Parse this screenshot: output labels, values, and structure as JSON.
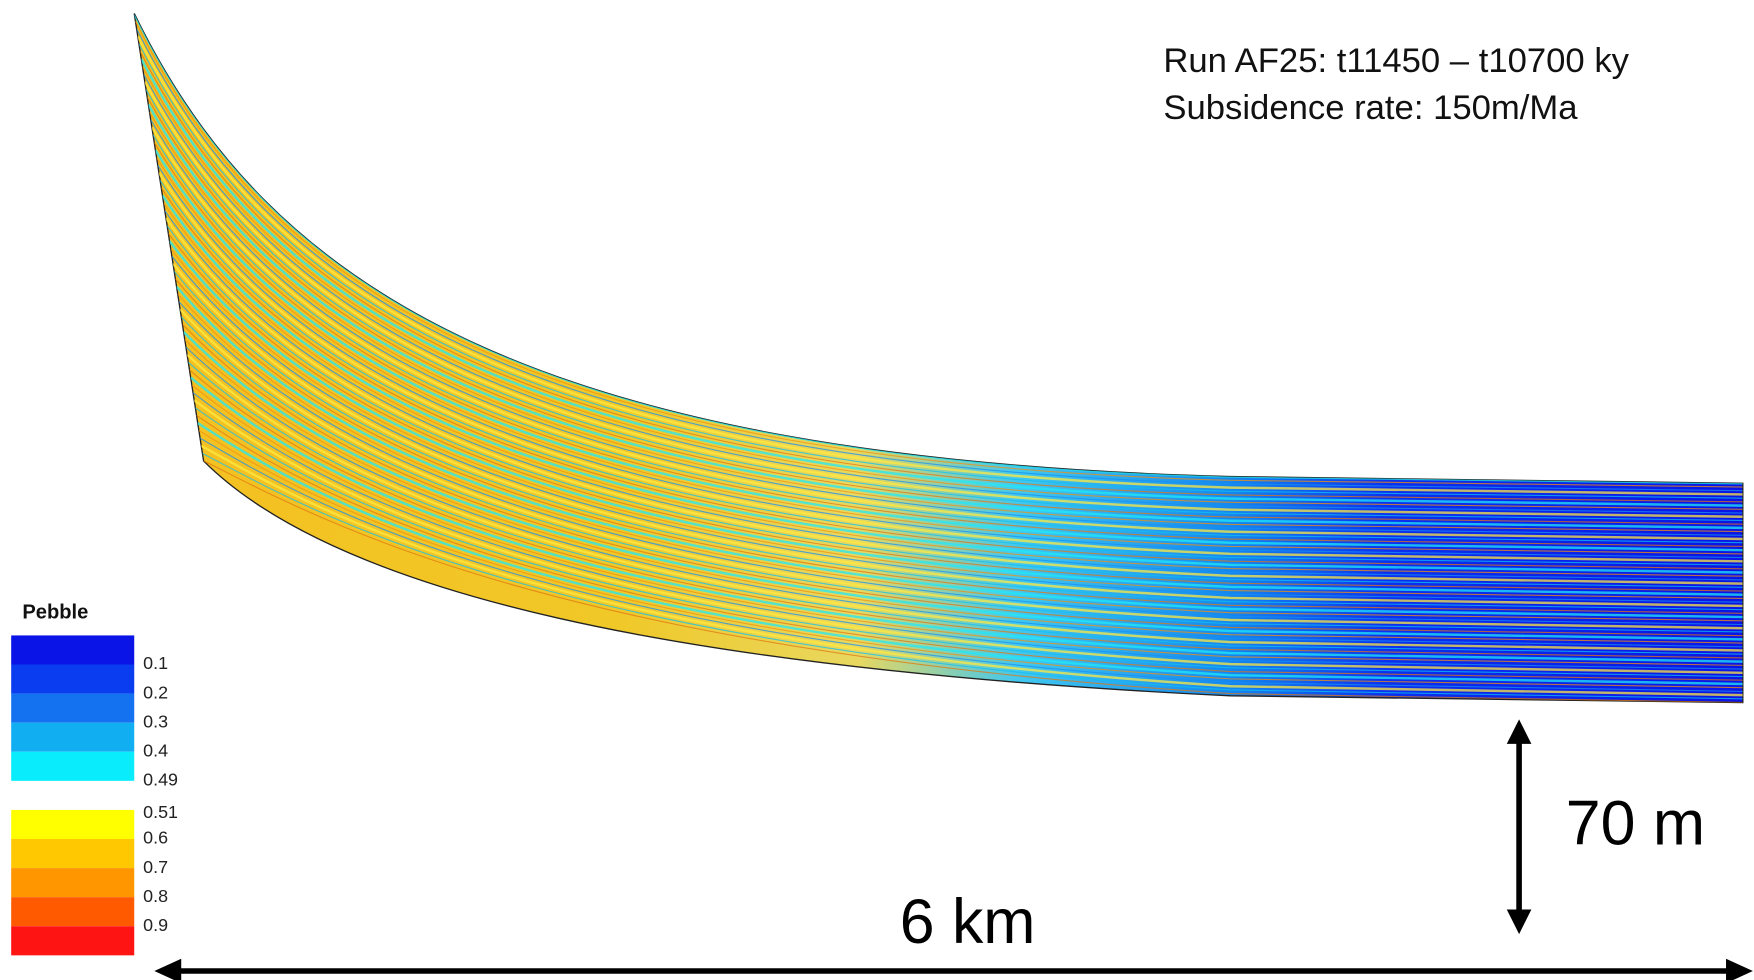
{
  "annotation": {
    "lines": [
      "Run AF25: t11450 – t10700 ky",
      "Subsidence rate: 150m/Ma"
    ]
  },
  "legend": {
    "title": "Pebble",
    "colors": [
      "#0a14e6",
      "#0a3cf0",
      "#1472f0",
      "#12aef2",
      "#08ecfc",
      "#ffff00",
      "#ffc800",
      "#ff9600",
      "#ff5a00",
      "#ff1414"
    ],
    "labels": [
      "0.1",
      "0.2",
      "0.3",
      "0.4",
      "0.49",
      "0.51",
      "0.6",
      "0.7",
      "0.8",
      "0.9"
    ]
  },
  "scale_bars": {
    "vertical": "70 m",
    "horizontal": "6 km"
  }
}
